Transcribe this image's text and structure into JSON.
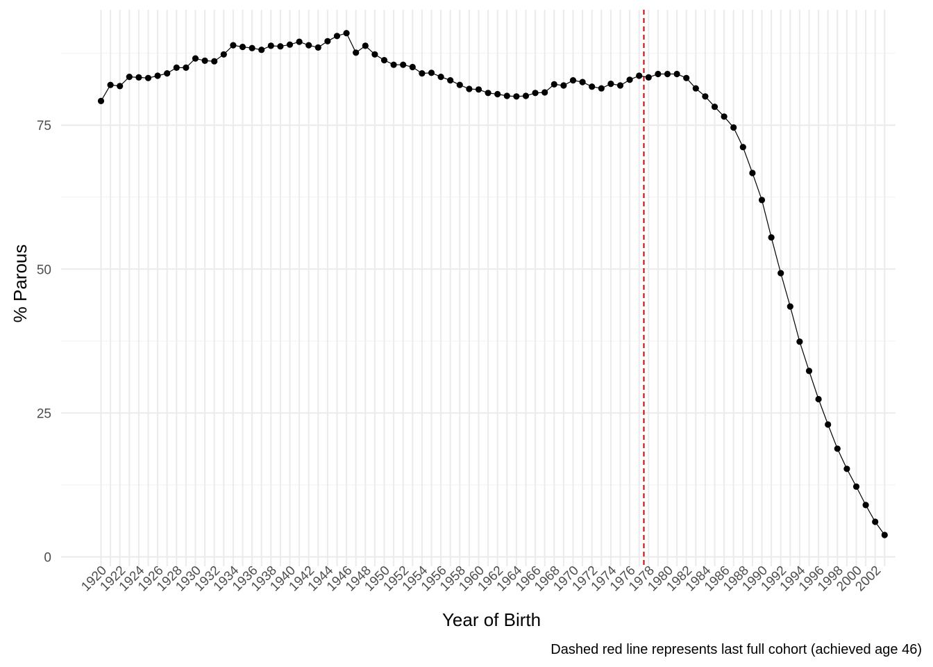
{
  "chart_data": {
    "type": "line",
    "title": "",
    "xlabel": "Year of Birth",
    "ylabel": "% Parous",
    "caption": "Dashed red line represents last full cohort (achieved age 46)",
    "xlim": [
      1920,
      2003
    ],
    "ylim": [
      0,
      95
    ],
    "y_ticks": [
      0,
      25,
      50,
      75
    ],
    "x_tick_labels": [
      "1920",
      "1922",
      "1924",
      "1926",
      "1928",
      "1930",
      "1932",
      "1934",
      "1936",
      "1938",
      "1940",
      "1942",
      "1944",
      "1946",
      "1948",
      "1950",
      "1952",
      "1954",
      "1956",
      "1958",
      "1960",
      "1962",
      "1964",
      "1966",
      "1968",
      "1970",
      "1972",
      "1974",
      "1976",
      "1978",
      "1980",
      "1982",
      "1984",
      "1986",
      "1988",
      "1990",
      "1992",
      "1994",
      "1996",
      "1998",
      "2000",
      "2002"
    ],
    "grid": true,
    "reference_line": {
      "x": 1977.5,
      "color": "#cc0000",
      "style": "dashed"
    },
    "series": [
      {
        "color": "#000000",
        "x": [
          1920,
          1921,
          1922,
          1923,
          1924,
          1925,
          1926,
          1927,
          1928,
          1929,
          1930,
          1931,
          1932,
          1933,
          1934,
          1935,
          1936,
          1937,
          1938,
          1939,
          1940,
          1941,
          1942,
          1943,
          1944,
          1945,
          1946,
          1947,
          1948,
          1949,
          1950,
          1951,
          1952,
          1953,
          1954,
          1955,
          1956,
          1957,
          1958,
          1959,
          1960,
          1961,
          1962,
          1963,
          1964,
          1965,
          1966,
          1967,
          1968,
          1969,
          1970,
          1971,
          1972,
          1973,
          1974,
          1975,
          1976,
          1977,
          1978,
          1979,
          1980,
          1981,
          1982,
          1983,
          1984,
          1985,
          1986,
          1987,
          1988,
          1989,
          1990,
          1991,
          1992,
          1993,
          1994,
          1995,
          1996,
          1997,
          1998,
          1999,
          2000,
          2001,
          2002,
          2003
        ],
        "y": [
          79.2,
          82.0,
          81.8,
          83.4,
          83.3,
          83.2,
          83.6,
          84.0,
          85.0,
          85.0,
          86.6,
          86.2,
          86.1,
          87.3,
          88.9,
          88.6,
          88.4,
          88.1,
          88.8,
          88.7,
          89.0,
          89.5,
          88.9,
          88.5,
          89.6,
          90.5,
          91.0,
          87.6,
          88.8,
          87.3,
          86.3,
          85.5,
          85.5,
          85.1,
          84.0,
          84.1,
          83.4,
          82.8,
          82.0,
          81.3,
          81.2,
          80.6,
          80.4,
          80.1,
          80.0,
          80.1,
          80.6,
          80.7,
          82.1,
          81.9,
          82.8,
          82.5,
          81.7,
          81.4,
          82.2,
          81.9,
          82.9,
          83.6,
          83.3,
          83.9,
          83.9,
          83.9,
          83.2,
          81.4,
          80.0,
          78.2,
          76.5,
          74.6,
          71.2,
          66.7,
          62.0,
          55.5,
          49.3,
          43.5,
          37.4,
          32.3,
          27.4,
          23.0,
          18.8,
          15.3,
          12.2,
          9.0,
          6.1,
          3.8
        ]
      }
    ]
  }
}
